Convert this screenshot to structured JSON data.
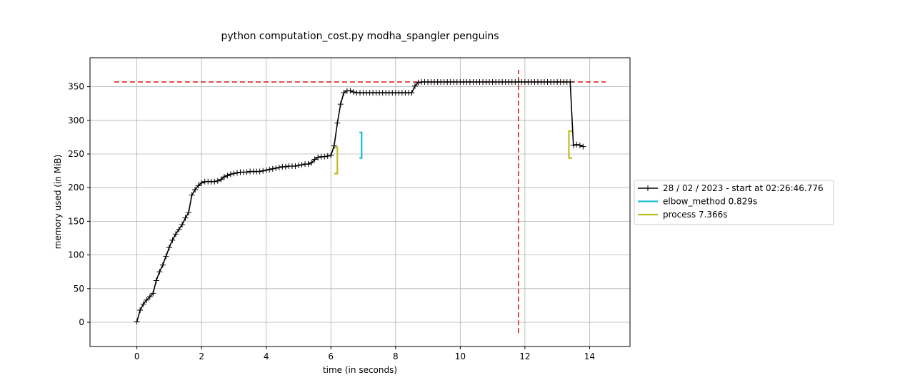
{
  "chart_data": {
    "type": "line",
    "title": "python computation_cost.py modha_spangler penguins",
    "xlabel": "time (in seconds)",
    "ylabel": "memory used (in MiB)",
    "xlim": [
      -1.45,
      15.25
    ],
    "ylim": [
      -36,
      393
    ],
    "xticks": [
      0,
      2,
      4,
      6,
      8,
      10,
      12,
      14
    ],
    "yticks": [
      0,
      50,
      100,
      150,
      200,
      250,
      300,
      350
    ],
    "grid": true,
    "legend_position": "right",
    "series": [
      {
        "name": "28 / 02 / 2023 - start at 02:26:46.776",
        "color": "#000000",
        "marker": "+",
        "x": [
          0.0,
          0.1,
          0.2,
          0.3,
          0.4,
          0.5,
          0.6,
          0.7,
          0.8,
          0.9,
          1.0,
          1.1,
          1.2,
          1.3,
          1.4,
          1.5,
          1.6,
          1.7,
          1.8,
          1.9,
          2.0,
          2.1,
          2.2,
          2.3,
          2.4,
          2.5,
          2.6,
          2.7,
          2.8,
          2.9,
          3.0,
          3.1,
          3.2,
          3.3,
          3.4,
          3.5,
          3.6,
          3.7,
          3.8,
          3.9,
          4.0,
          4.1,
          4.2,
          4.3,
          4.4,
          4.5,
          4.6,
          4.7,
          4.8,
          4.9,
          5.0,
          5.1,
          5.2,
          5.3,
          5.4,
          5.5,
          5.6,
          5.7,
          5.8,
          5.9,
          6.0,
          6.1,
          6.2,
          6.3,
          6.4,
          6.5,
          6.6,
          6.7,
          6.8,
          6.9,
          7.0,
          7.1,
          7.2,
          7.3,
          7.4,
          7.5,
          7.6,
          7.7,
          7.8,
          7.9,
          8.0,
          8.1,
          8.2,
          8.3,
          8.4,
          8.5,
          8.6,
          8.7,
          8.8,
          8.9,
          9.0,
          9.1,
          9.2,
          9.3,
          9.4,
          9.5,
          9.6,
          9.7,
          9.8,
          9.9,
          10.0,
          10.1,
          10.2,
          10.3,
          10.4,
          10.5,
          10.6,
          10.7,
          10.8,
          10.9,
          11.0,
          11.1,
          11.2,
          11.3,
          11.4,
          11.5,
          11.6,
          11.7,
          11.8,
          11.9,
          12.0,
          12.1,
          12.2,
          12.3,
          12.4,
          12.5,
          12.6,
          12.7,
          12.8,
          12.9,
          13.0,
          13.1,
          13.2,
          13.3,
          13.4,
          13.5,
          13.6,
          13.7,
          13.8
        ],
        "y": [
          1,
          18,
          27,
          33,
          38,
          43,
          62,
          75,
          85,
          98,
          111,
          122,
          131,
          138,
          145,
          155,
          163,
          189,
          197,
          203,
          207,
          209,
          209,
          209,
          209,
          210,
          212,
          216,
          218,
          220,
          221,
          222,
          223,
          223,
          223,
          224,
          224,
          224,
          224,
          225,
          226,
          227,
          228,
          229,
          230,
          231,
          231,
          232,
          232,
          232,
          233,
          234,
          235,
          235,
          237,
          242,
          245,
          246,
          246,
          247,
          248,
          262,
          296,
          324,
          341,
          344,
          344,
          342,
          341,
          341,
          341,
          341,
          341,
          341,
          341,
          341,
          341,
          341,
          341,
          341,
          341,
          341,
          341,
          341,
          341,
          341,
          351,
          356,
          357,
          357,
          357,
          357,
          357,
          357,
          357,
          357,
          357,
          357,
          357,
          357,
          357,
          357,
          357,
          357,
          357,
          357,
          357,
          357,
          357,
          357,
          357,
          357,
          357,
          357,
          357,
          357,
          357,
          357,
          357,
          357,
          357,
          357,
          357,
          357,
          357,
          357,
          357,
          357,
          357,
          357,
          357,
          357,
          357,
          357,
          357,
          263,
          264,
          263,
          261
        ]
      }
    ],
    "brackets": [
      {
        "name": "elbow_method 0.829s",
        "color": "#17becf",
        "x_start": 6.88,
        "x_end": 6.95,
        "y_start": 244,
        "y_end": 282,
        "legend": true
      },
      {
        "name": "process 7.366s",
        "color": "#bcbd22",
        "x_start": 6.1,
        "x_end": 6.2,
        "y_start": 221,
        "y_end": 260,
        "legend": true
      },
      {
        "name": "process 7.366s",
        "color": "#bcbd22",
        "x_start": 13.46,
        "x_end": 13.36,
        "y_start": 244,
        "y_end": 284,
        "legend": false
      }
    ],
    "reference_lines": [
      {
        "orientation": "horizontal",
        "value": 357,
        "from": -0.7,
        "to": 14.5,
        "color": "#d62728",
        "style": "dashed"
      },
      {
        "orientation": "vertical",
        "value": 11.8,
        "from": -16,
        "to": 375,
        "color": "#d62728",
        "style": "dashed"
      }
    ]
  }
}
